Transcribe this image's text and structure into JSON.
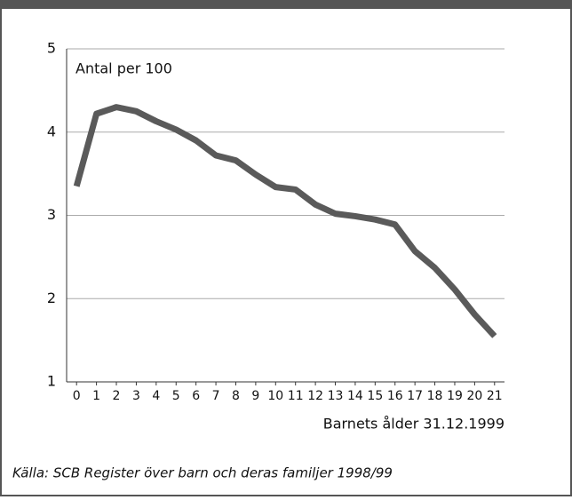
{
  "chart_data": {
    "type": "line",
    "y_label": "Antal per 100",
    "x_label": "Barnets ålder 31.12.1999",
    "source": "Källa: SCB Register över barn och deras familjer 1998/99",
    "x": [
      0,
      1,
      2,
      3,
      4,
      5,
      6,
      7,
      8,
      9,
      10,
      11,
      12,
      13,
      14,
      15,
      16,
      17,
      18,
      19,
      20,
      21
    ],
    "series": [
      {
        "color": "#5a5a5a",
        "values": [
          3.35,
          4.22,
          4.3,
          4.25,
          4.13,
          4.03,
          3.9,
          3.72,
          3.66,
          3.49,
          3.34,
          3.31,
          3.13,
          3.02,
          2.99,
          2.95,
          2.89,
          2.57,
          2.37,
          2.11,
          1.81,
          1.55
        ]
      }
    ],
    "xlim": [
      -0.5,
      21.5
    ],
    "xticks": [
      0,
      1,
      2,
      3,
      4,
      5,
      6,
      7,
      8,
      9,
      10,
      11,
      12,
      13,
      14,
      15,
      16,
      17,
      18,
      19,
      20,
      21
    ],
    "ylim": [
      1,
      5
    ],
    "yticks": [
      1,
      2,
      3,
      4,
      5
    ],
    "grid": true
  }
}
